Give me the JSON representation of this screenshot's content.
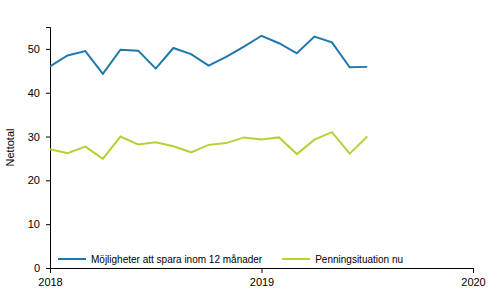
{
  "chart_data": {
    "type": "line",
    "y_label": "Nettotal",
    "x": [
      2018,
      2018.083,
      2018.167,
      2018.25,
      2018.333,
      2018.417,
      2018.5,
      2018.583,
      2018.667,
      2018.75,
      2018.833,
      2018.917,
      2019,
      2019.083,
      2019.167,
      2019.25,
      2019.333,
      2019.417,
      2019.5
    ],
    "series": [
      {
        "name": "Möjligheter att spara inom 12 månader",
        "color": "#1f78aa",
        "values": [
          46,
          48.5,
          49.5,
          44.3,
          49.8,
          49.6,
          45.5,
          50.2,
          48.8,
          46.2,
          48.2,
          50.5,
          53,
          51.3,
          49,
          52.8,
          51.5,
          45.8,
          45.9
        ]
      },
      {
        "name": "Penningsituation nu",
        "color": "#b3d236",
        "values": [
          27.1,
          26.2,
          27.7,
          24.9,
          30,
          28.2,
          28.7,
          27.8,
          26.4,
          28.1,
          28.5,
          29.8,
          29.3,
          29.8,
          26,
          29.3,
          31,
          26.1,
          30
        ]
      }
    ],
    "xlim": [
      2018,
      2020
    ],
    "xticks": [
      2018,
      2019,
      2020
    ],
    "ylim": [
      0,
      55
    ],
    "yticks": [
      0,
      10,
      20,
      30,
      40,
      50
    ],
    "grid": false,
    "legend": "lower left"
  }
}
